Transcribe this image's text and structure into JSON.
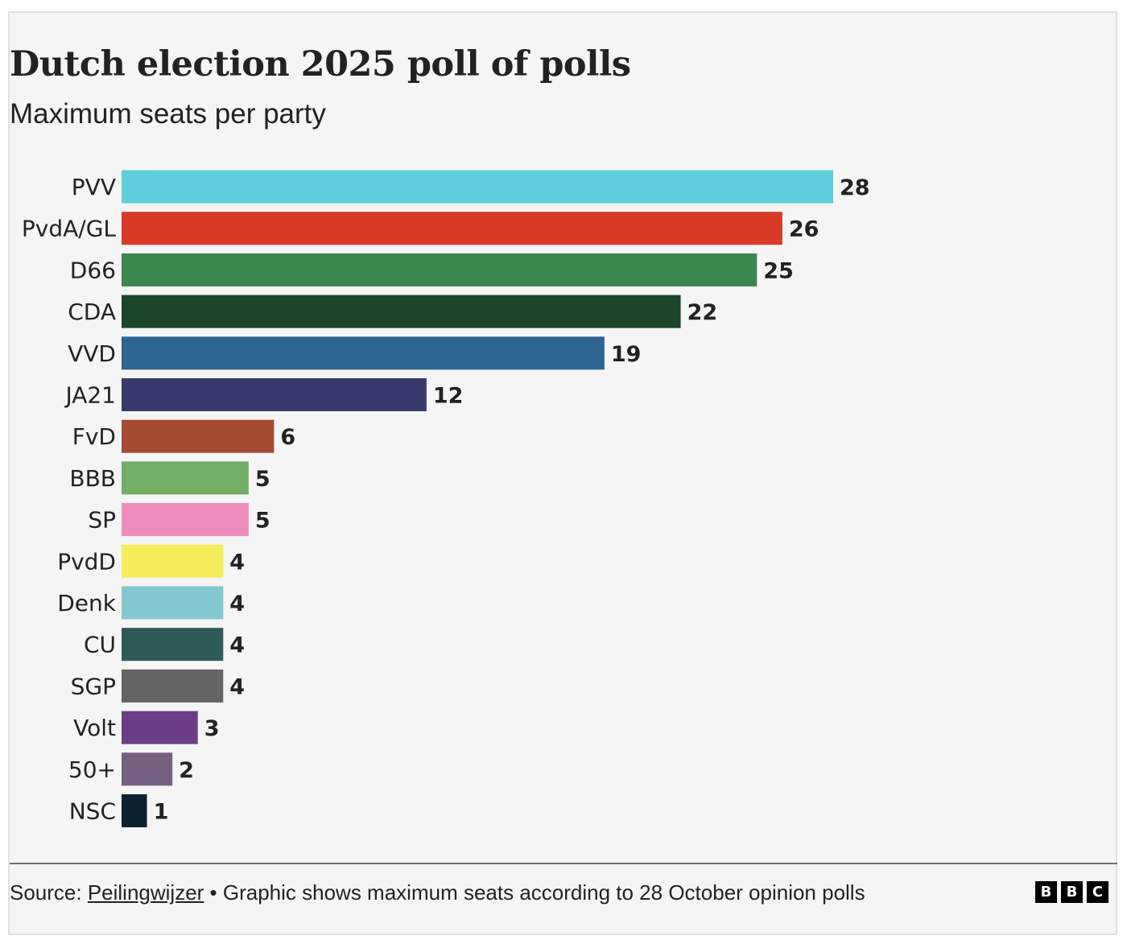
{
  "header": {
    "title": "Dutch election 2025 poll of polls",
    "subtitle": "Maximum seats per party"
  },
  "footer": {
    "source_prefix": "Source: ",
    "source_link": "Peilingwijzer",
    "note": " • Graphic shows maximum seats according to 28 October opinion polls",
    "logo_letters": [
      "B",
      "B",
      "C"
    ]
  },
  "chart_data": {
    "type": "bar",
    "orientation": "horizontal",
    "title": "Dutch election 2025 poll of polls",
    "subtitle": "Maximum seats per party",
    "xlabel": "",
    "ylabel": "",
    "xlim": [
      0,
      28
    ],
    "grid": false,
    "legend": "none",
    "data_labels": true,
    "categories": [
      "PVV",
      "PvdA/GL",
      "D66",
      "CDA",
      "VVD",
      "JA21",
      "FvD",
      "BBB",
      "SP",
      "PvdD",
      "Denk",
      "CU",
      "SGP",
      "Volt",
      "50+",
      "NSC"
    ],
    "values": [
      28,
      26,
      25,
      22,
      19,
      12,
      6,
      5,
      5,
      4,
      4,
      4,
      4,
      3,
      2,
      1
    ],
    "colors": [
      "#5ecedc",
      "#d93a26",
      "#3a874f",
      "#1b4629",
      "#2d6490",
      "#383a6e",
      "#a54b33",
      "#72ae66",
      "#ee8cc0",
      "#f6ec5a",
      "#83c7d0",
      "#2e5a57",
      "#646464",
      "#6a3e86",
      "#766081",
      "#0c2231"
    ]
  }
}
